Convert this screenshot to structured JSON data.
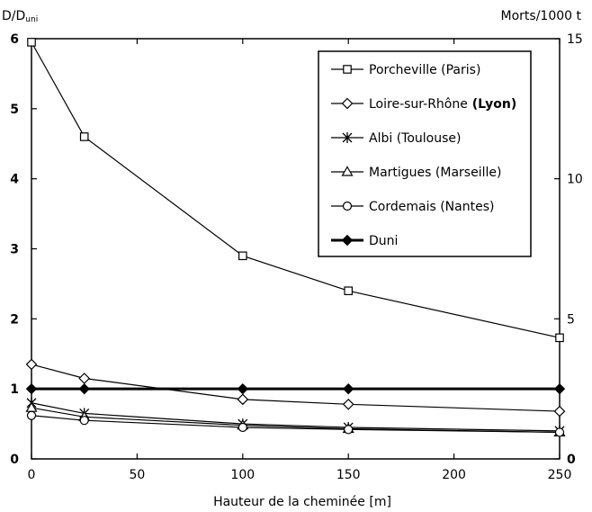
{
  "chart_data": {
    "type": "line",
    "ylabel_main": "D/D",
    "ylabel_sub": "uni",
    "y2label": "Morts/1000 t",
    "xlabel": "Hauteur de la cheminée [m]",
    "xlim": [
      0,
      250
    ],
    "ylim": [
      0,
      6
    ],
    "y2lim": [
      0,
      15
    ],
    "x_ticks": [
      0,
      50,
      100,
      150,
      200,
      250
    ],
    "y_ticks": [
      0,
      1,
      2,
      3,
      4,
      5,
      6
    ],
    "y2_ticks": [
      0,
      5,
      10,
      15
    ],
    "grid": false,
    "legend_position": "top-right",
    "x": [
      0,
      25,
      100,
      150,
      250
    ],
    "series": [
      {
        "name": "Porcheville (Paris)",
        "values": [
          5.95,
          4.6,
          2.9,
          2.4,
          1.73
        ],
        "marker": "square"
      },
      {
        "name": "Loire-sur-Rhône",
        "name_bold": "(Lyon)",
        "values": [
          1.35,
          1.15,
          0.85,
          0.78,
          0.68
        ],
        "marker": "diamond"
      },
      {
        "name": "Albi (Toulouse)",
        "values": [
          0.8,
          0.65,
          0.5,
          0.45,
          0.4
        ],
        "marker": "star"
      },
      {
        "name": "Martigues (Marseille)",
        "values": [
          0.73,
          0.6,
          0.48,
          0.43,
          0.38
        ],
        "marker": "triangle"
      },
      {
        "name": "Cordemais (Nantes)",
        "values": [
          0.62,
          0.55,
          0.45,
          0.42,
          0.38
        ],
        "marker": "circle"
      },
      {
        "name": "Duni",
        "values": [
          1.0,
          1.0,
          1.0,
          1.0,
          1.0
        ],
        "marker": "filled-diamond",
        "bold": true
      }
    ]
  }
}
